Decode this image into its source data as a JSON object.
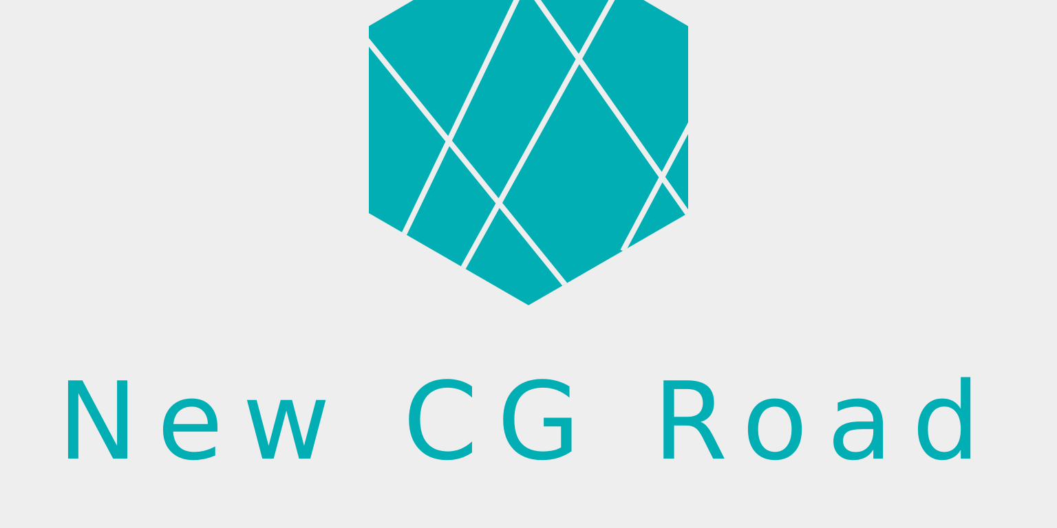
{
  "brand": {
    "name": "New CG Road",
    "accent_color": "#00aeb4",
    "background_color": "#eeeeee",
    "logo_icon": "faceted-hexagon-icon"
  }
}
